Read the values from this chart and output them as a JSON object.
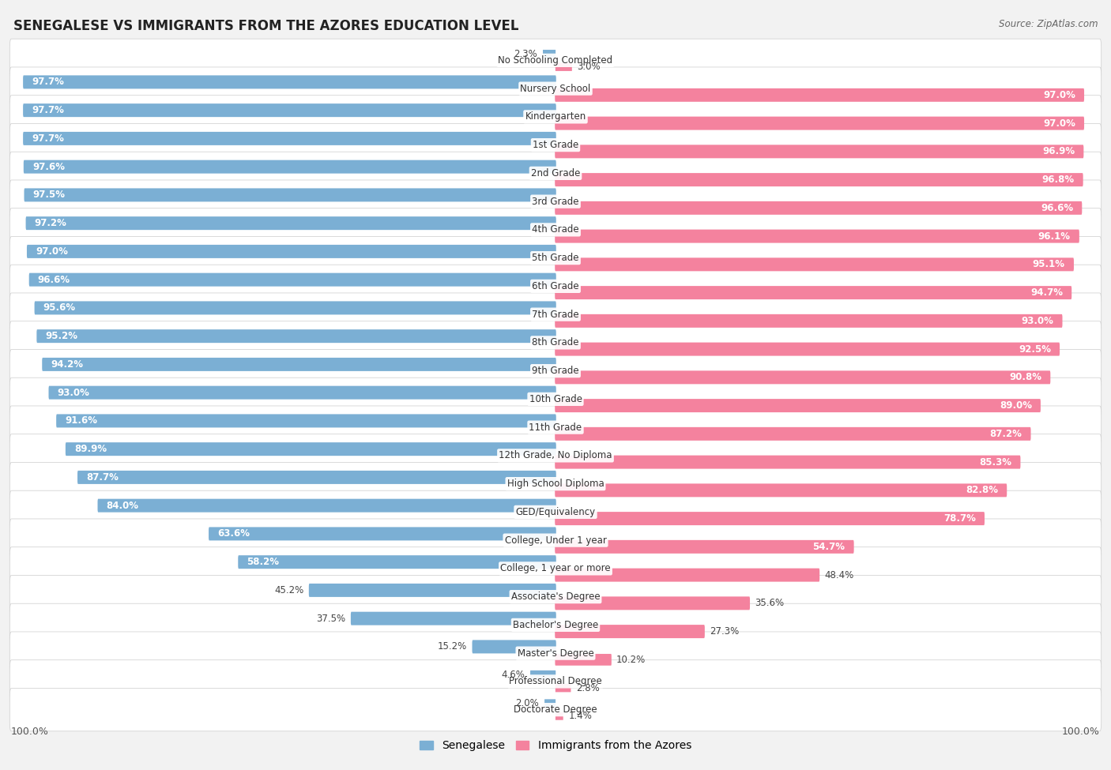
{
  "title": "SENEGALESE VS IMMIGRANTS FROM THE AZORES EDUCATION LEVEL",
  "source": "Source: ZipAtlas.com",
  "categories": [
    "No Schooling Completed",
    "Nursery School",
    "Kindergarten",
    "1st Grade",
    "2nd Grade",
    "3rd Grade",
    "4th Grade",
    "5th Grade",
    "6th Grade",
    "7th Grade",
    "8th Grade",
    "9th Grade",
    "10th Grade",
    "11th Grade",
    "12th Grade, No Diploma",
    "High School Diploma",
    "GED/Equivalency",
    "College, Under 1 year",
    "College, 1 year or more",
    "Associate's Degree",
    "Bachelor's Degree",
    "Master's Degree",
    "Professional Degree",
    "Doctorate Degree"
  ],
  "senegalese": [
    2.3,
    97.7,
    97.7,
    97.7,
    97.6,
    97.5,
    97.2,
    97.0,
    96.6,
    95.6,
    95.2,
    94.2,
    93.0,
    91.6,
    89.9,
    87.7,
    84.0,
    63.6,
    58.2,
    45.2,
    37.5,
    15.2,
    4.6,
    2.0
  ],
  "azores": [
    3.0,
    97.0,
    97.0,
    96.9,
    96.8,
    96.6,
    96.1,
    95.1,
    94.7,
    93.0,
    92.5,
    90.8,
    89.0,
    87.2,
    85.3,
    82.8,
    78.7,
    54.7,
    48.4,
    35.6,
    27.3,
    10.2,
    2.8,
    1.4
  ],
  "senegalese_color": "#7bafd4",
  "azores_color": "#f4829e",
  "background_color": "#f2f2f2",
  "row_color": "#ffffff",
  "label_fontsize": 8.5,
  "cat_fontsize": 8.5,
  "title_fontsize": 12,
  "source_fontsize": 8.5,
  "legend_label_senegalese": "Senegalese",
  "legend_label_azores": "Immigrants from the Azores"
}
